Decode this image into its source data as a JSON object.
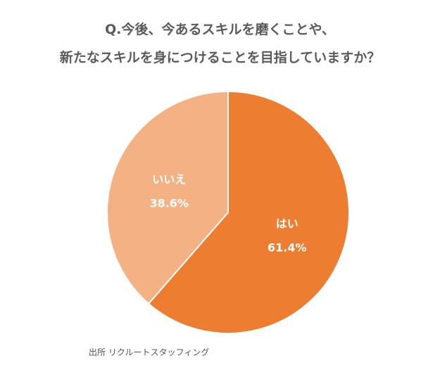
{
  "title_line1": "Q.今後、今あるスキルを磨くことや、",
  "title_line2": "新たなスキルを身につけることを目指していますか？",
  "source": "出所 リクルートスタッフィング",
  "colors": {
    "yes": "#ed7d31",
    "no": "#f4b183",
    "title": "#5a5a5a",
    "label": "#ffffff"
  },
  "chart_data": {
    "type": "pie",
    "title": "Q.今後、今あるスキルを磨くことや、新たなスキルを身につけることを目指していますか？",
    "start": "12 o'clock",
    "direction": "clockwise",
    "slices": [
      {
        "label": "はい",
        "value": 61.4,
        "value_label": "61.4%",
        "color": "#ed7d31"
      },
      {
        "label": "いいえ",
        "value": 38.6,
        "value_label": "38.6%",
        "color": "#f4b183"
      }
    ]
  }
}
